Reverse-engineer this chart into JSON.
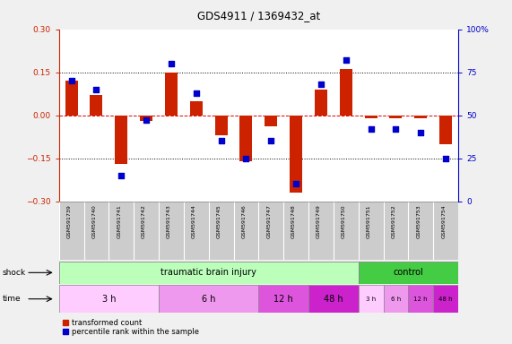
{
  "title": "GDS4911 / 1369432_at",
  "samples": [
    "GSM591739",
    "GSM591740",
    "GSM591741",
    "GSM591742",
    "GSM591743",
    "GSM591744",
    "GSM591745",
    "GSM591746",
    "GSM591747",
    "GSM591748",
    "GSM591749",
    "GSM591750",
    "GSM591751",
    "GSM591752",
    "GSM591753",
    "GSM591754"
  ],
  "red_values": [
    0.12,
    0.07,
    -0.17,
    -0.02,
    0.15,
    0.05,
    -0.07,
    -0.16,
    -0.04,
    -0.27,
    0.09,
    0.16,
    -0.01,
    -0.01,
    -0.01,
    -0.1
  ],
  "blue_values": [
    70,
    65,
    15,
    47,
    80,
    63,
    35,
    25,
    35,
    10,
    68,
    82,
    42,
    42,
    40,
    25
  ],
  "ylim_left": [
    -0.3,
    0.3
  ],
  "ylim_right": [
    0,
    100
  ],
  "dotted_vals": [
    0.15,
    -0.15
  ],
  "red_color": "#cc2200",
  "blue_color": "#0000cc",
  "zero_line_color": "#dd0000",
  "bg_color": "#f0f0f0",
  "plot_bg": "#ffffff",
  "label_color_left": "#cc2200",
  "label_color_right": "#0000cc",
  "shock_tbi_color": "#bbffbb",
  "shock_ctrl_color": "#44cc44",
  "time_colors": [
    "#ffccff",
    "#ee99ee",
    "#dd55dd",
    "#cc22cc"
  ],
  "time_groups_tbi": [
    [
      0,
      4,
      "3 h"
    ],
    [
      4,
      4,
      "6 h"
    ],
    [
      8,
      2,
      "12 h"
    ],
    [
      10,
      2,
      "48 h"
    ]
  ],
  "time_groups_ctrl": [
    [
      12,
      1,
      "3 h"
    ],
    [
      13,
      1,
      "6 h"
    ],
    [
      14,
      1,
      "12 h"
    ],
    [
      15,
      1,
      "48 h"
    ]
  ],
  "n_samples": 16,
  "n_tbi": 12,
  "n_ctrl": 4,
  "cell_bg": "#cccccc",
  "cell_border": "#888888"
}
